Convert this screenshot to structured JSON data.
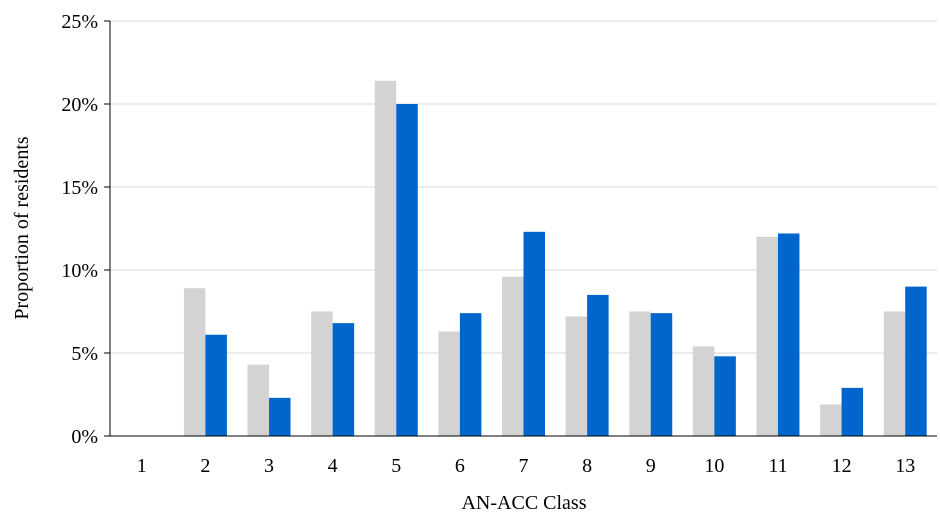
{
  "chart_data": {
    "type": "bar",
    "title": "",
    "xlabel": "AN-ACC Class",
    "ylabel": "Proportion of residents",
    "categories": [
      "1",
      "2",
      "3",
      "4",
      "5",
      "6",
      "7",
      "8",
      "9",
      "10",
      "11",
      "12",
      "13"
    ],
    "series": [
      {
        "color": "#d3d3d3",
        "values": [
          0,
          8.9,
          4.3,
          7.5,
          21.4,
          6.3,
          9.6,
          7.2,
          7.5,
          5.4,
          12.0,
          1.9,
          7.5
        ]
      },
      {
        "color": "#0066cc",
        "values": [
          0,
          6.1,
          2.3,
          6.8,
          20.0,
          7.4,
          12.3,
          8.5,
          7.4,
          4.8,
          12.2,
          2.9,
          9.0
        ]
      }
    ],
    "ylim": [
      0,
      25
    ],
    "yticks": [
      "0%",
      "5%",
      "10%",
      "15%",
      "20%",
      "25%"
    ],
    "grid": true,
    "legend": "none"
  }
}
